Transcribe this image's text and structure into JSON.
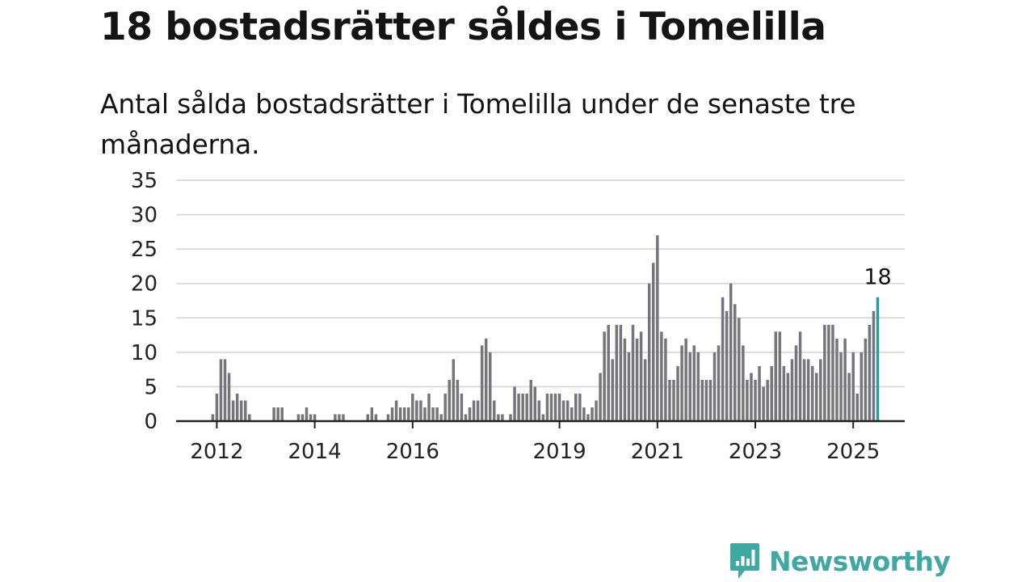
{
  "title": "18 bostadsrätter såldes i Tomelilla",
  "subtitle": "Antal sålda bostadsrätter i Tomelilla under de senaste tre månaderna.",
  "brand": {
    "name": "Newsworthy",
    "color": "#3fa8a3",
    "icon": "newsworthy-chart-bubble-icon"
  },
  "colors": {
    "bar": "#76757b",
    "highlight": "#2a9d98",
    "grid": "#dcdcdc",
    "axis": "#222222"
  },
  "chart_data": {
    "type": "bar",
    "x_start": "2011-10",
    "ylim": [
      0,
      35
    ],
    "yticks": [
      "0",
      "5",
      "10",
      "15",
      "20",
      "25",
      "30",
      "35"
    ],
    "xticks": [
      {
        "label": "2012",
        "month": "2012-01"
      },
      {
        "label": "2014",
        "month": "2014-01"
      },
      {
        "label": "2016",
        "month": "2016-01"
      },
      {
        "label": "2019",
        "month": "2019-01"
      },
      {
        "label": "2021",
        "month": "2021-01"
      },
      {
        "label": "2023",
        "month": "2023-01"
      },
      {
        "label": "2025",
        "month": "2025-01"
      }
    ],
    "grid": true,
    "highlight": {
      "month": "2025-07",
      "value": 18,
      "label": "18"
    },
    "values": [
      0,
      0,
      1,
      4,
      9,
      9,
      7,
      3,
      4,
      3,
      3,
      1,
      0,
      0,
      0,
      0,
      0,
      2,
      2,
      2,
      0,
      0,
      0,
      1,
      1,
      2,
      1,
      1,
      0,
      0,
      0,
      0,
      1,
      1,
      1,
      0,
      0,
      0,
      0,
      0,
      1,
      2,
      1,
      0,
      0,
      1,
      2,
      3,
      2,
      2,
      2,
      4,
      3,
      3,
      2,
      4,
      2,
      2,
      1,
      4,
      6,
      9,
      6,
      4,
      1,
      2,
      3,
      3,
      11,
      12,
      10,
      3,
      1,
      1,
      0,
      1,
      5,
      4,
      4,
      4,
      6,
      5,
      3,
      1,
      4,
      4,
      4,
      4,
      3,
      3,
      2,
      4,
      4,
      2,
      1,
      2,
      3,
      7,
      13,
      14,
      9,
      14,
      14,
      12,
      10,
      14,
      12,
      13,
      9,
      20,
      23,
      27,
      13,
      12,
      6,
      6,
      8,
      11,
      12,
      10,
      11,
      10,
      6,
      6,
      6,
      10,
      11,
      18,
      16,
      20,
      17,
      15,
      11,
      6,
      7,
      6,
      8,
      5,
      6,
      8,
      13,
      13,
      8,
      7,
      9,
      11,
      13,
      9,
      9,
      8,
      7,
      9,
      14,
      14,
      14,
      12,
      10,
      12,
      7,
      10,
      4,
      10,
      12,
      14,
      16,
      18
    ]
  }
}
